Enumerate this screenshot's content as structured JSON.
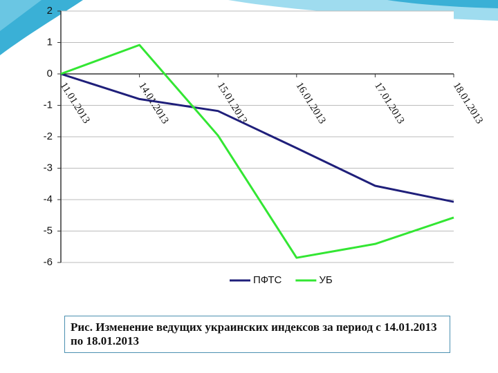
{
  "chart_data": {
    "type": "line",
    "categories": [
      "11.01.2013",
      "14.01.2013",
      "15.01.2013",
      "16.01.2013",
      "17.01.2013",
      "18.01.2013"
    ],
    "series": [
      {
        "name": "ПФТС",
        "color": "#1f1f7a",
        "values": [
          0,
          -0.8,
          -1.18,
          -2.36,
          -3.56,
          -4.07
        ]
      },
      {
        "name": "УБ",
        "color": "#33e633",
        "values": [
          0,
          0.92,
          -1.96,
          -5.85,
          -5.41,
          -4.57
        ]
      }
    ],
    "ylim": [
      -6,
      2
    ],
    "yticks": [
      -6,
      -5,
      -4,
      -3,
      -2,
      -1,
      0,
      1,
      2
    ],
    "grid": true,
    "legend": "bottom"
  },
  "caption": "Рис. Изменение ведущих украинских индексов за период с 14.01.2013 по 18.01.2013"
}
